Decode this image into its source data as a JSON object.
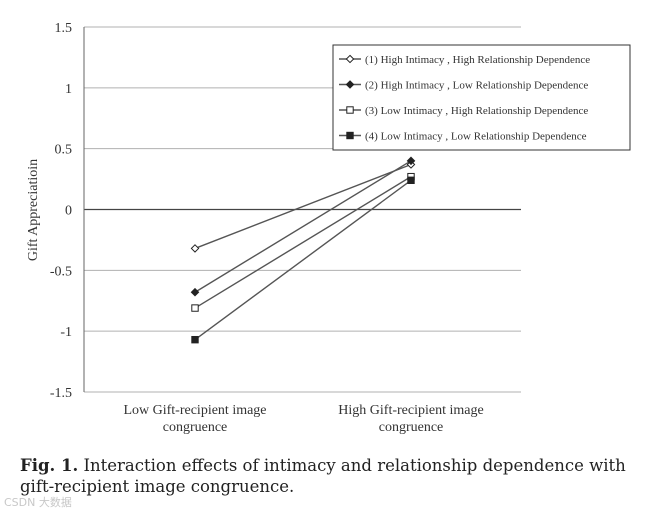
{
  "chart_data": {
    "type": "line",
    "title": "",
    "xlabel": "",
    "ylabel": "Gift Appreciatioin",
    "ylim": [
      -1.5,
      1.5
    ],
    "yticks": [
      1.5,
      1,
      0.5,
      0,
      -0.5,
      -1,
      -1.5
    ],
    "ytick_labels": [
      "1.5",
      "1",
      "0.5",
      "0",
      "-0.5",
      "-1",
      "-1.5"
    ],
    "grid": true,
    "legend_position": "top-right",
    "categories": [
      [
        "Low Gift-recipient image",
        "congruence"
      ],
      [
        "High Gift-recipient image",
        "congruence"
      ]
    ],
    "series": [
      {
        "name": "(1) High Intimacy , High Relationship Dependence",
        "marker": "diamond-open",
        "values": [
          -0.32,
          0.37
        ]
      },
      {
        "name": "(2) High Intimacy , Low Relationship Dependence",
        "marker": "diamond-filled",
        "values": [
          -0.68,
          0.4
        ]
      },
      {
        "name": "(3) Low Intimacy , High Relationship Dependence",
        "marker": "square-open",
        "values": [
          -0.81,
          0.27
        ]
      },
      {
        "name": "(4) Low Intimacy , Low Relationship Dependence",
        "marker": "square-filled",
        "values": [
          -1.07,
          0.24
        ]
      }
    ],
    "line_color": "#555555",
    "grid_color": "#b0b0b0"
  },
  "caption": {
    "label": "Fig. 1.",
    "text": "Interaction effects of intimacy and relationship dependence with gift-recipient image congruence."
  },
  "watermark": "CSDN 大数据"
}
